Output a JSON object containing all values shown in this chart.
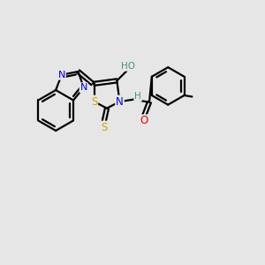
{
  "background_color": "#e6e6e6",
  "atom_colors": {
    "C": "#000000",
    "N": "#0000ee",
    "O": "#ee0000",
    "S": "#ccaa00",
    "H": "#4a8f8f"
  },
  "bond_color": "#000000",
  "bond_width": 1.6,
  "figsize": [
    3.0,
    3.0
  ],
  "dpi": 100
}
